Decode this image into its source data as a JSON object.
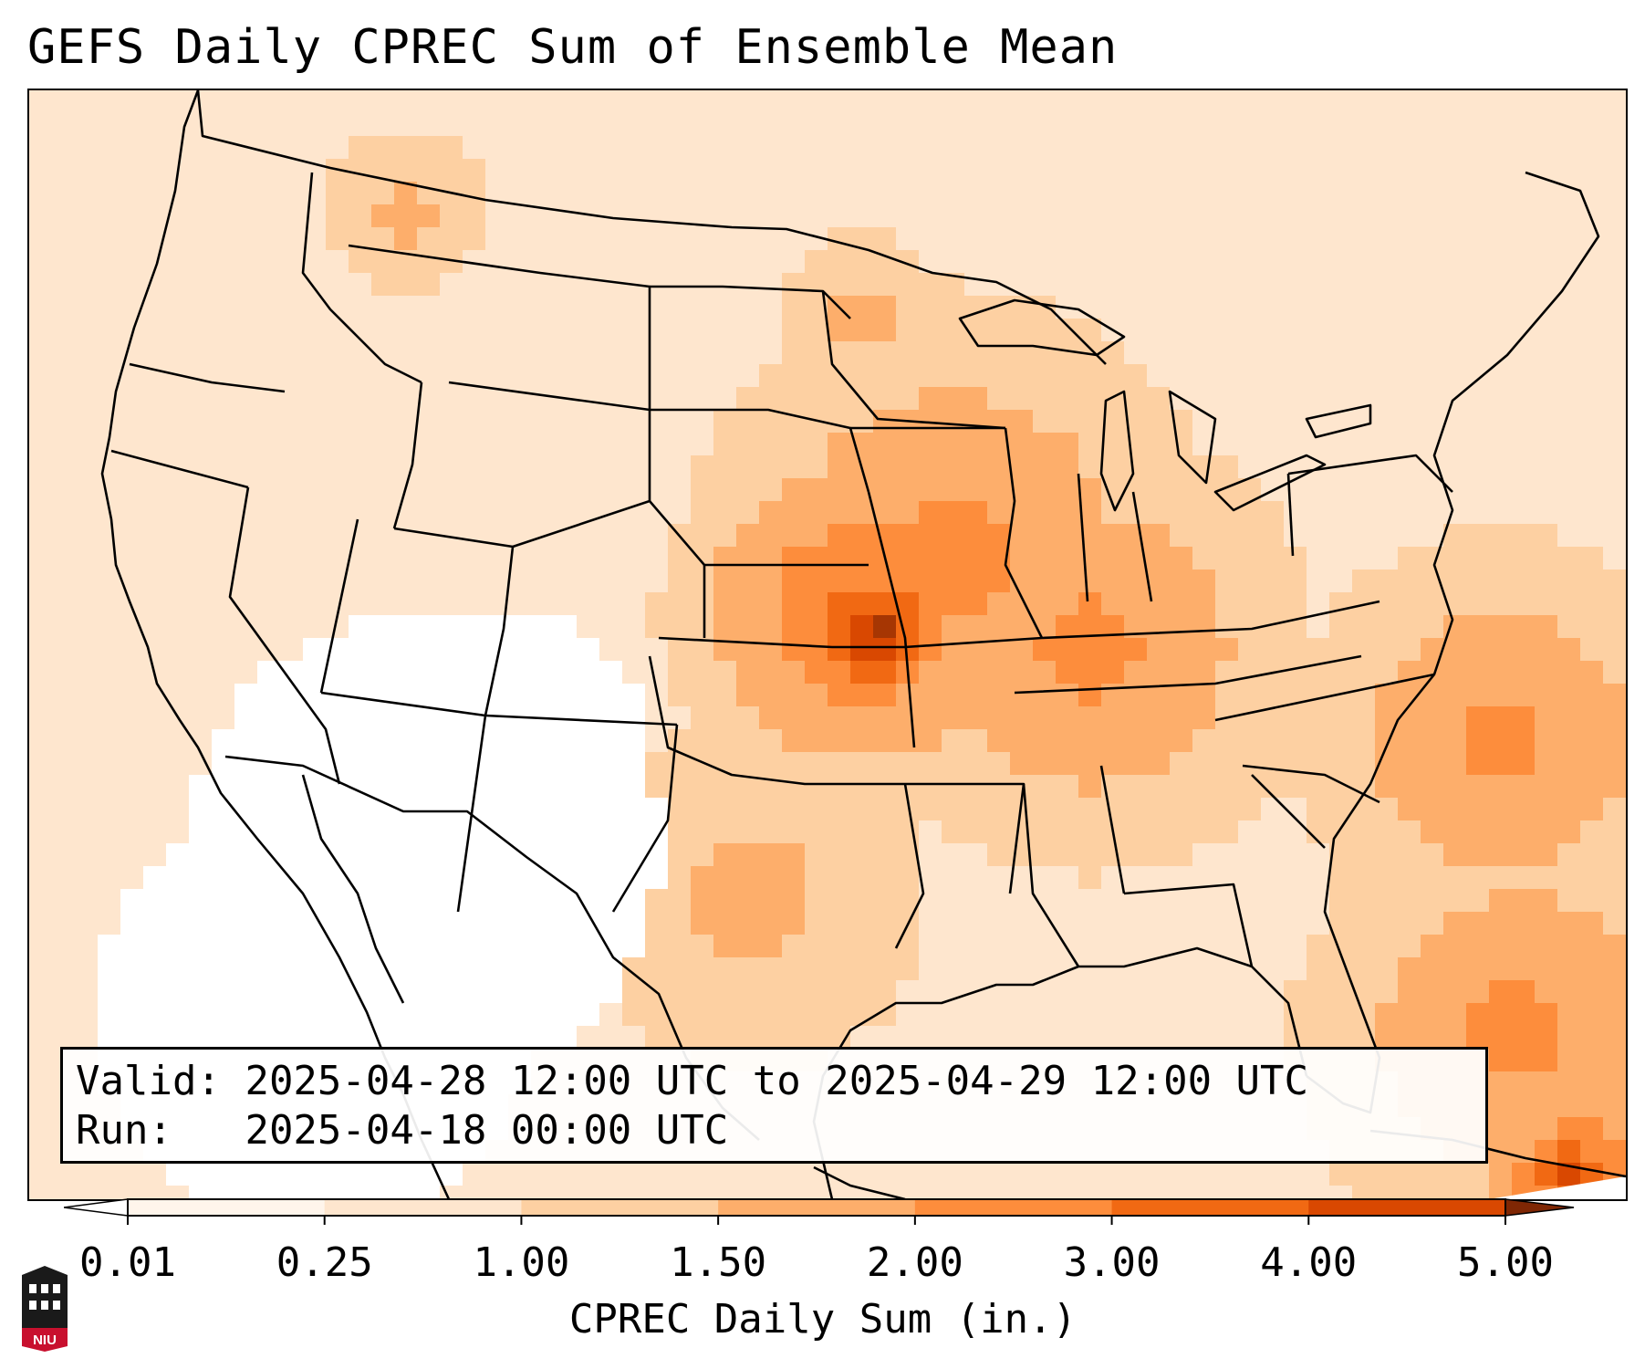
{
  "title": "GEFS Daily CPREC Sum of Ensemble Mean",
  "info_box": {
    "valid_label": "Valid:",
    "valid_value": "2025-04-28 12:00 UTC to 2025-04-29 12:00 UTC",
    "run_label": "Run:",
    "run_value": "2025-04-18 00:00 UTC"
  },
  "colorbar": {
    "label": "CPREC Daily Sum (in.)",
    "ticks": [
      "0.01",
      "0.25",
      "1.00",
      "1.50",
      "2.00",
      "3.00",
      "4.00",
      "5.00"
    ],
    "colors": [
      "#fff5eb",
      "#fee6ce",
      "#fdd0a2",
      "#fdae6b",
      "#fd8d3c",
      "#f16913",
      "#d94801",
      "#a63603"
    ],
    "under_color": "#ffffff",
    "over_color": "#7f2704"
  },
  "logo": {
    "text": "NIU",
    "icon": "university-building-icon"
  },
  "map": {
    "projection": "lambert-conformal",
    "region": "CONUS",
    "max_center": "Kansas-Oklahoma-Missouri"
  }
}
